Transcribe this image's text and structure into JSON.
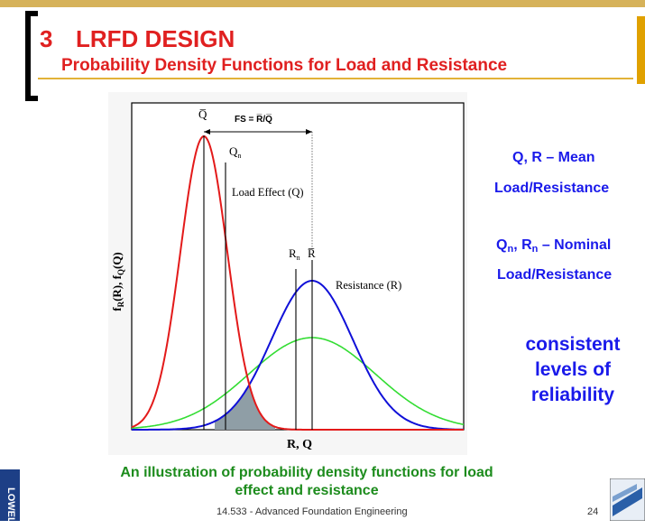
{
  "header": {
    "number": "3",
    "title": "LRFD DESIGN",
    "subtitle": "Probability Density Functions for Load and Resistance"
  },
  "figure": {
    "y_axis_label": "f_R(R), f_Q(Q)",
    "x_axis_label": "R, Q",
    "fs_label": "FS = R̅/Q̅",
    "q_mean": "Q̅",
    "q_nominal": "Q",
    "q_nominal_sub": "n",
    "load_label": "Load Effect (Q)",
    "r_nominal": "R",
    "r_nominal_sub": "n",
    "r_mean": "R̅",
    "resistance_label": "Resistance (R)",
    "colors": {
      "load": "#e31a1a",
      "resistance": "#1010d8",
      "green": "#33dd33",
      "overlap": "#8f9ea6"
    }
  },
  "side_notes": {
    "mean_line1": "Q, R – Mean",
    "mean_line2": "Load/Resistance",
    "nominal_q": "Q",
    "nominal_q_sub": "n",
    "nominal_r": ", R",
    "nominal_r_sub": "n",
    "nominal_rest": " – Nominal",
    "nominal_line2": "Load/Resistance",
    "consistent_1": "consistent",
    "consistent_2": "levels of",
    "consistent_3": "reliability"
  },
  "caption": {
    "line1": "An illustration of probability density functions for load",
    "line2": "effect and resistance"
  },
  "footer": {
    "course": "14.533 - Advanced Foundation Engineering",
    "page": "24",
    "left_logo_text": "LOWELL"
  }
}
